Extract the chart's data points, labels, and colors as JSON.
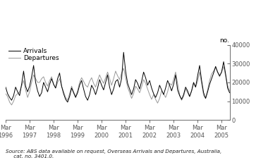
{
  "ylabel_right": "no.",
  "ylim": [
    0,
    40000
  ],
  "yticks": [
    0,
    10000,
    20000,
    30000,
    40000
  ],
  "ytick_labels": [
    "0",
    "10000",
    "20000",
    "30000",
    "40000"
  ],
  "source_text": "Source: ABS data available on request, Overseas Arrivals and Departures, Australia,\n     cat. no. 3401.0.",
  "legend_arrivals": "Arrivals",
  "legend_departures": "Departures",
  "arrivals_color": "#000000",
  "departures_color": "#999999",
  "background_color": "#ffffff",
  "x_tick_labels": [
    "Mar\n1996",
    "Mar\n1997",
    "Mar\n1998",
    "Mar\n1999",
    "Mar\n2000",
    "Mar\n2001",
    "Mar\n2002",
    "Mar\n2003",
    "Mar\n2004",
    "Mar\n2005"
  ],
  "arrivals": [
    17500,
    14000,
    12000,
    10500,
    13000,
    17500,
    15000,
    13000,
    19000,
    26000,
    18000,
    15000,
    18000,
    23000,
    29000,
    20000,
    15500,
    12500,
    14500,
    20000,
    17500,
    15000,
    19000,
    22000,
    19000,
    17000,
    22000,
    25000,
    18000,
    14000,
    11000,
    9500,
    12500,
    17000,
    14500,
    12000,
    14500,
    18500,
    21000,
    16500,
    12500,
    10500,
    13500,
    18500,
    16500,
    13500,
    17000,
    21500,
    18500,
    16000,
    20000,
    24000,
    17500,
    13500,
    16500,
    20500,
    21500,
    17500,
    22000,
    36000,
    26000,
    19500,
    16500,
    13500,
    16500,
    21500,
    19500,
    16500,
    20500,
    25500,
    22500,
    18500,
    21000,
    17000,
    14000,
    12000,
    14500,
    18500,
    16000,
    13500,
    17000,
    21000,
    18500,
    15500,
    19000,
    24000,
    16000,
    13000,
    11000,
    13500,
    17500,
    15500,
    12500,
    15500,
    20000,
    17500,
    23500,
    29000,
    21000,
    14500,
    11500,
    15000,
    19000,
    22000,
    25000,
    28500,
    25500,
    23500,
    25500,
    31000,
    24500,
    17000,
    14500
  ],
  "departures": [
    14000,
    12500,
    9500,
    8000,
    10000,
    13000,
    14000,
    15000,
    18000,
    21000,
    16000,
    12000,
    15000,
    20000,
    24000,
    22000,
    20000,
    20000,
    22000,
    23000,
    20000,
    18000,
    21000,
    23000,
    19000,
    17000,
    20000,
    22000,
    18000,
    15000,
    12000,
    10500,
    14000,
    18000,
    15000,
    12500,
    15500,
    20000,
    22500,
    20500,
    18500,
    17500,
    20500,
    22500,
    19500,
    17500,
    21000,
    24000,
    21500,
    19500,
    22500,
    25500,
    22000,
    18500,
    22000,
    26000,
    23500,
    21500,
    25000,
    27500,
    22500,
    17500,
    14500,
    11500,
    14000,
    18000,
    16500,
    14500,
    17500,
    21500,
    19500,
    16500,
    13500,
    11000,
    13500,
    11000,
    9000,
    11500,
    15500,
    14000,
    12000,
    15000,
    19500,
    18500,
    21500,
    25500,
    19500,
    13500,
    10500,
    12500,
    16500,
    14500,
    12500,
    15500,
    19500,
    17500,
    20500,
    25500,
    19500,
    13000,
    11500,
    16000,
    21000,
    24500,
    26000,
    28000,
    25500,
    23000,
    25500,
    28500,
    23500,
    18500,
    15500
  ]
}
